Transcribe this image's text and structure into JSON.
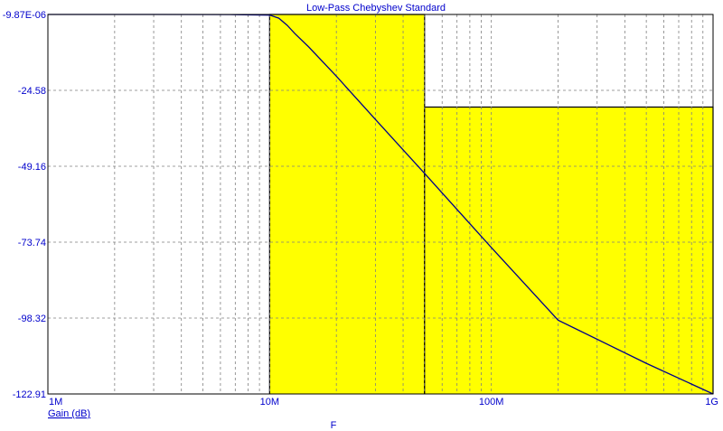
{
  "chart_data": {
    "type": "line",
    "title": "Low-Pass Chebyshev Standard",
    "xlabel": "F",
    "ylabel": "Gain (dB)",
    "x_scale": "log",
    "xlim": [
      1000000,
      1000000000
    ],
    "ylim": [
      -122.91,
      -9.87e-06
    ],
    "x_ticks": [
      {
        "value": 1000000,
        "label": "1M"
      },
      {
        "value": 10000000,
        "label": "10M"
      },
      {
        "value": 100000000,
        "label": "100M"
      },
      {
        "value": 1000000000,
        "label": "1G"
      }
    ],
    "y_ticks": [
      {
        "value": -9.87e-06,
        "label": "-9.87E-06"
      },
      {
        "value": -24.58,
        "label": "-24.58"
      },
      {
        "value": -49.16,
        "label": "-49.16"
      },
      {
        "value": -73.74,
        "label": "-73.74"
      },
      {
        "value": -98.32,
        "label": "-98.32"
      },
      {
        "value": -122.91,
        "label": "-122.91"
      }
    ],
    "grid": true,
    "series": [
      {
        "name": "Gain (dB)",
        "color": "#00008b",
        "x": [
          1000000,
          3000000,
          7000000,
          10000000,
          11000000,
          12000000,
          13000000,
          15000000,
          20000000,
          30000000,
          50000000,
          100000000,
          200000000,
          500000000,
          1000000000
        ],
        "y": [
          -9.87e-06,
          -9.87e-06,
          -0.05,
          -0.2,
          -1.2,
          -3.5,
          -6.2,
          -10.5,
          -20,
          -34,
          -51.5,
          -75.5,
          -99,
          -113,
          -122.91
        ]
      }
    ],
    "regions": [
      {
        "x": [
          10000000,
          50000000
        ],
        "y_top": -9.87e-06,
        "y_bottom": -122.91,
        "color": "#ffff00"
      },
      {
        "x": [
          50000000,
          1000000000
        ],
        "y_top": -30,
        "y_bottom": -122.91,
        "color": "#ffff00"
      }
    ]
  }
}
